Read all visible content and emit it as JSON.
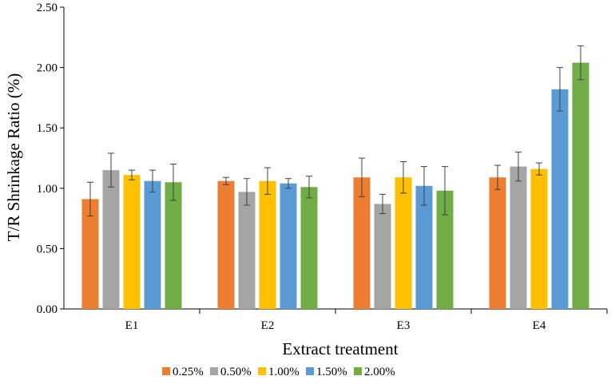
{
  "chart_data": {
    "type": "bar",
    "title": "",
    "xlabel": "Extract treatment",
    "ylabel": "T/R Shrinkage Ratio (%)",
    "ylim": [
      0,
      2.5
    ],
    "yticks": [
      "0.00",
      "0.50",
      "1.00",
      "1.50",
      "2.00",
      "2.50"
    ],
    "categories": [
      "E1",
      "E2",
      "E3",
      "E4"
    ],
    "grid": false,
    "legend_position": "bottom",
    "series": [
      {
        "name": "0.25%",
        "color": "#ED7D31",
        "values": [
          0.91,
          1.06,
          1.09,
          1.09
        ],
        "errors": [
          0.14,
          0.03,
          0.16,
          0.1
        ]
      },
      {
        "name": "0.50%",
        "color": "#A5A5A5",
        "values": [
          1.15,
          0.97,
          0.87,
          1.18
        ],
        "errors": [
          0.14,
          0.11,
          0.08,
          0.12
        ]
      },
      {
        "name": "1.00%",
        "color": "#FFC000",
        "values": [
          1.11,
          1.06,
          1.09,
          1.16
        ],
        "errors": [
          0.04,
          0.11,
          0.13,
          0.05
        ]
      },
      {
        "name": "1.50%",
        "color": "#5B9BD5",
        "values": [
          1.06,
          1.04,
          1.02,
          1.82
        ],
        "errors": [
          0.09,
          0.04,
          0.16,
          0.18
        ]
      },
      {
        "name": "2.00%",
        "color": "#70AD47",
        "values": [
          1.05,
          1.01,
          0.98,
          2.04
        ],
        "errors": [
          0.15,
          0.09,
          0.2,
          0.14
        ]
      }
    ]
  }
}
